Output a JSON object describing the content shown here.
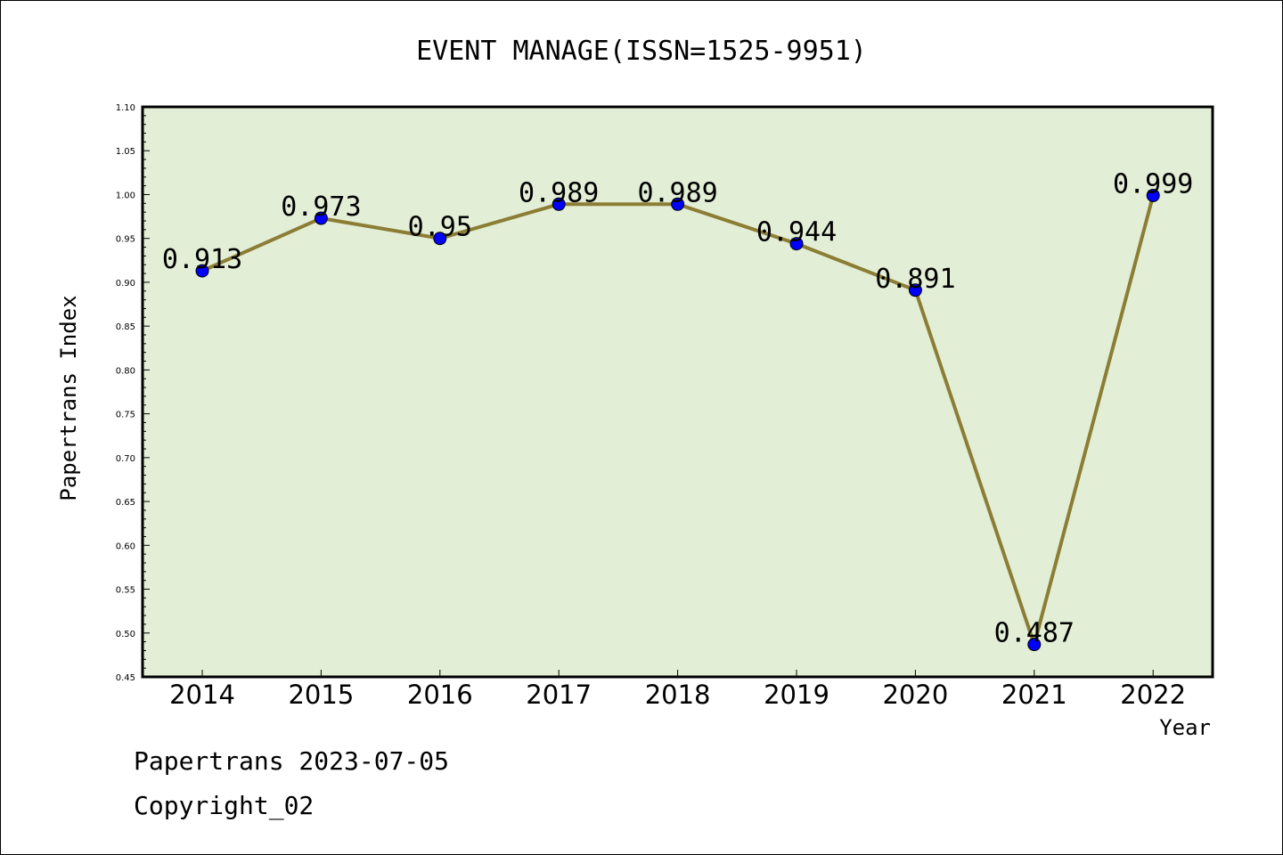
{
  "chart_data": {
    "type": "line",
    "title": "EVENT MANAGE(ISSN=1525-9951)",
    "xlabel": "Year",
    "ylabel": "Papertrans Index",
    "x": [
      "2014",
      "2015",
      "2016",
      "2017",
      "2018",
      "2019",
      "2020",
      "2021",
      "2022"
    ],
    "series": [
      {
        "values": [
          0.913,
          0.973,
          0.95,
          0.989,
          0.989,
          0.944,
          0.891,
          0.487,
          0.999
        ],
        "labels": [
          "0.913",
          "0.973",
          "0.95",
          "0.989",
          "0.989",
          "0.944",
          "0.891",
          "0.487",
          "0.999"
        ]
      }
    ],
    "ylim": [
      0.45,
      1.1
    ],
    "yticks": [
      "0.45",
      "0.50",
      "0.55",
      "0.60",
      "0.65",
      "0.70",
      "0.75",
      "0.80",
      "0.85",
      "0.90",
      "0.95",
      "1.00",
      "1.05",
      "1.10"
    ],
    "grid": false,
    "colors": {
      "plot_background": "#e2efd6",
      "line": "#8c7d35",
      "marker": "#0000ff"
    }
  },
  "footer": {
    "line1": "Papertrans 2023-07-05",
    "line2": "Copyright_02"
  }
}
